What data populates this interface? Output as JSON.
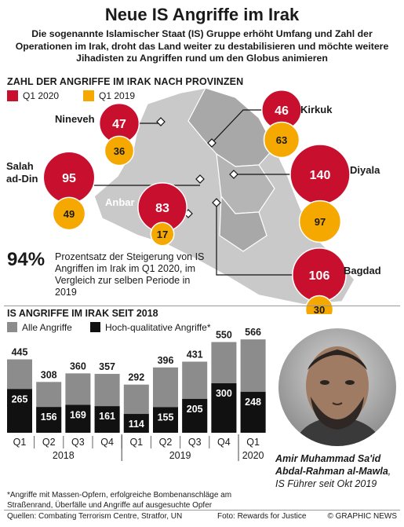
{
  "title": "Neue IS Angriffe im Irak",
  "subtitle": "Die sogenannte Islamischer Staat (IS) Gruppe erhöht Umfang und Zahl der Operationen im Irak, droht das Land weiter zu destabilisieren und möchte weitere Jihadisten zu Angriffen rund um den Globus animieren",
  "map_section": {
    "heading": "ZAHL DER ANGRIFFE IM IRAK NACH PROVINZEN",
    "legend": [
      {
        "label": "Q1 2020",
        "color": "#c8102e"
      },
      {
        "label": "Q1 2019",
        "color": "#f5a800"
      }
    ]
  },
  "colors": {
    "q2020": "#c8102e",
    "q2019": "#f5a800",
    "all": "#8c8c8c",
    "hq": "#111111",
    "map": "#c9c9c9",
    "map_dark": "#a8a8a8"
  },
  "chart_data": [
    {
      "type": "bubble-map",
      "title": "ZAHL DER ANGRIFFE IM IRAK NACH PROVINZEN",
      "series": [
        {
          "name": "Q1 2020"
        },
        {
          "name": "Q1 2019"
        }
      ],
      "provinces": [
        {
          "name": "Nineveh",
          "q1_2020": 47,
          "q1_2019": 36
        },
        {
          "name": "Kirkuk",
          "q1_2020": 46,
          "q1_2019": 63
        },
        {
          "name": "Salah ad-Din",
          "label_lines": [
            "Salah",
            "ad-Din"
          ],
          "q1_2020": 95,
          "q1_2019": 49
        },
        {
          "name": "Diyala",
          "q1_2020": 140,
          "q1_2019": 97
        },
        {
          "name": "Anbar",
          "q1_2020": 83,
          "q1_2019": 17
        },
        {
          "name": "Bagdad",
          "q1_2020": 106,
          "q1_2019": 30
        }
      ]
    },
    {
      "type": "bar",
      "title": "IS ANGRIFFE IM IRAK SEIT 2018",
      "categories": [
        "Q1",
        "Q2",
        "Q3",
        "Q4",
        "Q1",
        "Q2",
        "Q3",
        "Q4",
        "Q1"
      ],
      "years": [
        {
          "label": "2018",
          "span": [
            0,
            3
          ]
        },
        {
          "label": "2019",
          "span": [
            4,
            7
          ]
        },
        {
          "label": "2020",
          "span": [
            8,
            8
          ]
        }
      ],
      "series": [
        {
          "name": "Alle Angriffe",
          "values": [
            445,
            308,
            360,
            357,
            292,
            396,
            431,
            550,
            566
          ]
        },
        {
          "name": "Hoch-qualitative Angriffe*",
          "values": [
            265,
            156,
            169,
            161,
            114,
            155,
            205,
            300,
            248
          ]
        }
      ],
      "ylim": [
        0,
        600
      ]
    }
  ],
  "highlight": {
    "value": "94%",
    "text": "Prozentsatz der Steigerung von IS Angriffen im Irak im Q1 2020, im Vergleich zur selben Periode in 2019"
  },
  "bar_section": {
    "heading": "IS ANGRIFFE IM IRAK SEIT 2018"
  },
  "photo_caption": {
    "name": "Amir Muhammad Sa'id Abdal-Rahman al-Mawla",
    "role": ", IS Führer seit Okt 2019"
  },
  "footnote": "*Angriffe mit Massen-Opfern, erfolgreiche Bombenanschläge am Straßenrand, Überfälle und Angriffe auf ausgesuchte Opfer",
  "sources": "Quellen: Combating Terrorism Centre, Stratfor, UN",
  "photo_credit": "Foto: Rewards for Justice",
  "copyright": "© GRAPHIC NEWS"
}
